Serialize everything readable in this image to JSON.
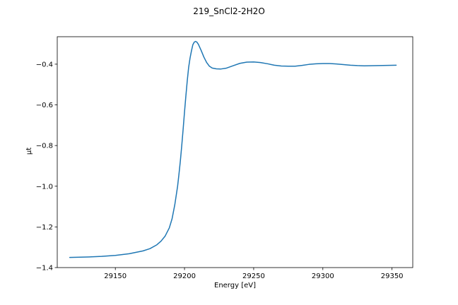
{
  "chart_data": {
    "type": "line",
    "title": "219_SnCl2-2H2O",
    "xlabel": "Energy [eV]",
    "ylabel": "μt",
    "xlim": [
      29108,
      29365
    ],
    "ylim": [
      -1.4,
      -0.265
    ],
    "xticks": [
      29150,
      29200,
      29250,
      29300,
      29350
    ],
    "xtick_labels": [
      "29150",
      "29200",
      "29250",
      "29300",
      "29350"
    ],
    "yticks": [
      -1.4,
      -1.2,
      -1.0,
      -0.8,
      -0.6,
      -0.4
    ],
    "ytick_labels": [
      "−1.4",
      "−1.2",
      "−1.0",
      "−0.8",
      "−0.6",
      "−0.4"
    ],
    "grid": false,
    "series": [
      {
        "color": "#1f77b4",
        "x": [
          29117,
          29130,
          29140,
          29150,
          29160,
          29170,
          29175,
          29180,
          29183,
          29186,
          29189,
          29191,
          29193,
          29195,
          29196,
          29197,
          29198,
          29199,
          29200,
          29201,
          29202,
          29203,
          29204,
          29205,
          29206,
          29207,
          29208,
          29209,
          29210,
          29212,
          29214,
          29216,
          29218,
          29220,
          29223,
          29226,
          29230,
          29235,
          29240,
          29245,
          29250,
          29255,
          29260,
          29265,
          29270,
          29275,
          29280,
          29285,
          29290,
          29295,
          29300,
          29305,
          29310,
          29315,
          29320,
          29325,
          29330,
          29340,
          29353
        ],
        "y": [
          -1.35,
          -1.348,
          -1.345,
          -1.34,
          -1.332,
          -1.318,
          -1.307,
          -1.288,
          -1.27,
          -1.245,
          -1.205,
          -1.16,
          -1.09,
          -1.0,
          -0.94,
          -0.875,
          -0.8,
          -0.72,
          -0.635,
          -0.555,
          -0.48,
          -0.415,
          -0.37,
          -0.335,
          -0.305,
          -0.292,
          -0.288,
          -0.292,
          -0.302,
          -0.332,
          -0.365,
          -0.392,
          -0.41,
          -0.419,
          -0.423,
          -0.424,
          -0.42,
          -0.408,
          -0.396,
          -0.39,
          -0.389,
          -0.392,
          -0.398,
          -0.405,
          -0.409,
          -0.41,
          -0.41,
          -0.406,
          -0.401,
          -0.398,
          -0.397,
          -0.397,
          -0.399,
          -0.402,
          -0.405,
          -0.407,
          -0.408,
          -0.407,
          -0.405
        ]
      }
    ]
  }
}
